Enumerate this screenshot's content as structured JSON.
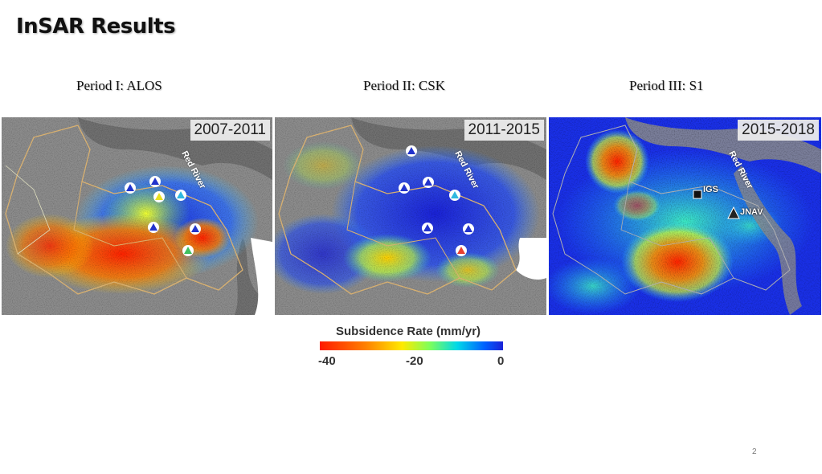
{
  "slide": {
    "title": "InSAR Results",
    "page_number": "2"
  },
  "periods": [
    {
      "label": "Period I: ALOS",
      "years": "2007-2011"
    },
    {
      "label": "Period II: CSK",
      "years": "2011-2015"
    },
    {
      "label": "Period III: S1",
      "years": "2015-2018"
    }
  ],
  "map": {
    "river_label": "Red River",
    "stations": {
      "igs": "IGS",
      "jnav": "JNAV"
    }
  },
  "legend": {
    "title": "Subsidence Rate (mm/yr)",
    "ticks": [
      "-40",
      "-20",
      "0"
    ],
    "colors": [
      "#ff1a00",
      "#ff8000",
      "#ffea00",
      "#00d8e8",
      "#1a22d8"
    ]
  },
  "colors": {
    "background_gray": "#8c8c8c",
    "river_gray": "#6f6f6f",
    "boundary_tan": "#d8b070"
  }
}
